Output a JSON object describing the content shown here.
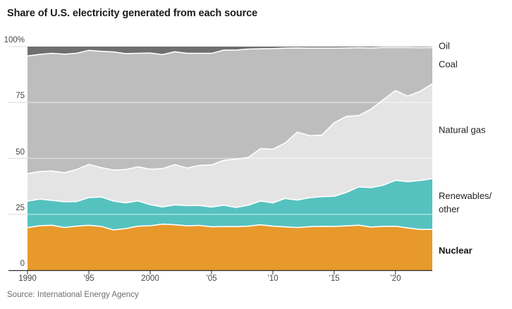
{
  "title": "Share of U.S. electricity generated from each source",
  "source": "Source: International Energy Agency",
  "colors": {
    "nuclear": "#e8992c",
    "renewables": "#56c2bf",
    "natural_gas": "#e4e4e5",
    "coal": "#bdbdbd",
    "oil": "#6f6f6f",
    "gridline": "#d9d9d9",
    "gridline_over_band": "rgba(255,255,255,0.55)",
    "axis": "#2f2f2f",
    "band_separator": "#ffffff"
  },
  "y_axis": {
    "tick_values": [
      0,
      25,
      50,
      75,
      100
    ],
    "tick_labels": [
      "0",
      "25",
      "50",
      "75",
      "100%"
    ]
  },
  "x_axis": {
    "tick_values": [
      1990,
      1995,
      2000,
      2005,
      2010,
      2015,
      2020
    ],
    "tick_labels": [
      "1990",
      "’95",
      "2000",
      "’05",
      "’10",
      "’15",
      "’20"
    ]
  },
  "chart_data": {
    "type": "area",
    "stacked": true,
    "unit": "percent of generation",
    "title": "Share of U.S. electricity generated from each source",
    "ylim": [
      0,
      100
    ],
    "grid": true,
    "legend_position": "right",
    "x": [
      1990,
      1991,
      1992,
      1993,
      1994,
      1995,
      1996,
      1997,
      1998,
      1999,
      2000,
      2001,
      2002,
      2003,
      2004,
      2005,
      2006,
      2007,
      2008,
      2009,
      2010,
      2011,
      2012,
      2013,
      2014,
      2015,
      2016,
      2017,
      2018,
      2019,
      2020,
      2021,
      2022,
      2023
    ],
    "series": [
      {
        "name": "Nuclear",
        "label": "Nuclear",
        "label_bold": true,
        "color": "#e8992c",
        "values": [
          19.0,
          19.9,
          20.1,
          19.1,
          19.7,
          20.1,
          19.6,
          18.0,
          18.6,
          19.7,
          19.8,
          20.6,
          20.2,
          19.7,
          19.9,
          19.3,
          19.4,
          19.4,
          19.6,
          20.2,
          19.6,
          19.3,
          19.0,
          19.4,
          19.5,
          19.5,
          19.7,
          20.0,
          19.3,
          19.7,
          19.7,
          18.9,
          18.2,
          18.2
        ]
      },
      {
        "name": "Renewables/other",
        "label": "Renewables/\nother",
        "label_bold": false,
        "color": "#56c2bf",
        "values": [
          11.8,
          11.9,
          11.1,
          11.5,
          11.0,
          12.4,
          13.1,
          12.9,
          11.5,
          11.3,
          9.4,
          7.7,
          8.8,
          9.0,
          8.9,
          8.8,
          9.5,
          8.5,
          9.3,
          10.6,
          10.4,
          12.7,
          12.2,
          12.9,
          13.2,
          13.4,
          14.9,
          17.0,
          17.6,
          18.5,
          20.6,
          20.7,
          21.9,
          22.7
        ]
      },
      {
        "name": "Natural gas",
        "label": "Natural gas",
        "label_bold": false,
        "color": "#e4e4e5",
        "values": [
          12.3,
          12.3,
          13.2,
          13.0,
          14.3,
          14.8,
          13.2,
          13.9,
          14.9,
          15.2,
          15.8,
          17.1,
          17.9,
          16.7,
          17.8,
          18.7,
          20.0,
          21.5,
          21.3,
          23.3,
          23.9,
          24.7,
          30.3,
          27.6,
          27.4,
          32.7,
          33.8,
          31.7,
          35.1,
          38.4,
          40.3,
          38.3,
          39.8,
          42.4
        ]
      },
      {
        "name": "Coal",
        "label": "Coal",
        "label_bold": false,
        "color": "#bdbdbd",
        "values": [
          52.5,
          52.4,
          52.6,
          53.0,
          52.0,
          51.0,
          52.0,
          52.8,
          51.8,
          50.8,
          51.7,
          51.0,
          50.1,
          50.9,
          49.8,
          49.6,
          49.0,
          48.5,
          48.2,
          44.4,
          44.8,
          42.3,
          37.4,
          39.0,
          38.6,
          33.2,
          30.4,
          30.1,
          27.4,
          23.5,
          19.3,
          21.8,
          19.5,
          16.2
        ]
      },
      {
        "name": "Oil",
        "label": "Oil",
        "label_bold": false,
        "color": "#6f6f6f",
        "values": [
          4.2,
          3.5,
          3.0,
          3.4,
          3.0,
          1.7,
          2.1,
          2.4,
          3.2,
          3.0,
          2.9,
          3.6,
          2.3,
          3.0,
          3.0,
          3.0,
          1.6,
          1.6,
          1.1,
          1.0,
          0.9,
          0.7,
          0.6,
          0.7,
          0.7,
          0.7,
          0.6,
          0.5,
          0.6,
          0.4,
          0.4,
          0.4,
          0.5,
          0.4
        ]
      }
    ]
  }
}
